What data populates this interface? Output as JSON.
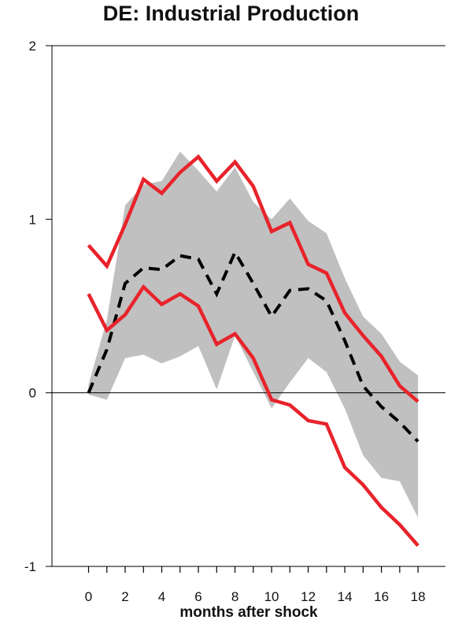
{
  "chart_data": {
    "type": "line",
    "title": "DE: Industrial Production",
    "xlabel": "months after shock",
    "ylabel": "",
    "xlim": [
      -2.0,
      19.5
    ],
    "ylim": [
      -1,
      2
    ],
    "x_ticks": [
      0,
      2,
      4,
      6,
      8,
      10,
      12,
      14,
      16,
      18
    ],
    "x_minor_ticks": [
      0,
      1,
      2,
      3,
      4,
      5,
      6,
      7,
      8,
      9,
      10,
      11,
      12,
      13,
      14,
      15,
      16,
      17,
      18
    ],
    "y_ticks": [
      -1,
      0,
      1,
      2
    ],
    "zero_line": true,
    "x": [
      0,
      1,
      2,
      3,
      4,
      5,
      6,
      7,
      8,
      9,
      10,
      11,
      12,
      13,
      14,
      15,
      16,
      17,
      18
    ],
    "band": {
      "upper": [
        0.05,
        0.42,
        1.08,
        1.2,
        1.22,
        1.39,
        1.28,
        1.16,
        1.3,
        1.1,
        1.0,
        1.12,
        0.99,
        0.92,
        0.66,
        0.44,
        0.34,
        0.18,
        0.1
      ],
      "lower": [
        -0.01,
        -0.04,
        0.2,
        0.22,
        0.17,
        0.21,
        0.27,
        0.02,
        0.33,
        0.12,
        -0.09,
        0.06,
        0.2,
        0.12,
        -0.09,
        -0.36,
        -0.49,
        -0.51,
        -0.72
      ],
      "color": "#c0c0c0"
    },
    "series": [
      {
        "style": "dashed",
        "color": "#000000",
        "values": [
          0.0,
          0.25,
          0.63,
          0.72,
          0.71,
          0.79,
          0.77,
          0.57,
          0.81,
          0.63,
          0.44,
          0.59,
          0.6,
          0.53,
          0.3,
          0.04,
          -0.08,
          -0.17,
          -0.28
        ]
      },
      {
        "style": "solid",
        "color": "#e8232b",
        "values": [
          0.85,
          0.73,
          0.97,
          1.23,
          1.15,
          1.27,
          1.36,
          1.22,
          1.33,
          1.19,
          0.93,
          0.98,
          0.74,
          0.69,
          0.46,
          0.33,
          0.21,
          0.04,
          -0.05
        ]
      },
      {
        "style": "solid",
        "color": "#e8232b",
        "values": [
          0.57,
          0.36,
          0.45,
          0.61,
          0.51,
          0.57,
          0.5,
          0.28,
          0.34,
          0.2,
          -0.04,
          -0.07,
          -0.16,
          -0.18,
          -0.43,
          -0.53,
          -0.66,
          -0.76,
          -0.88
        ]
      }
    ]
  }
}
